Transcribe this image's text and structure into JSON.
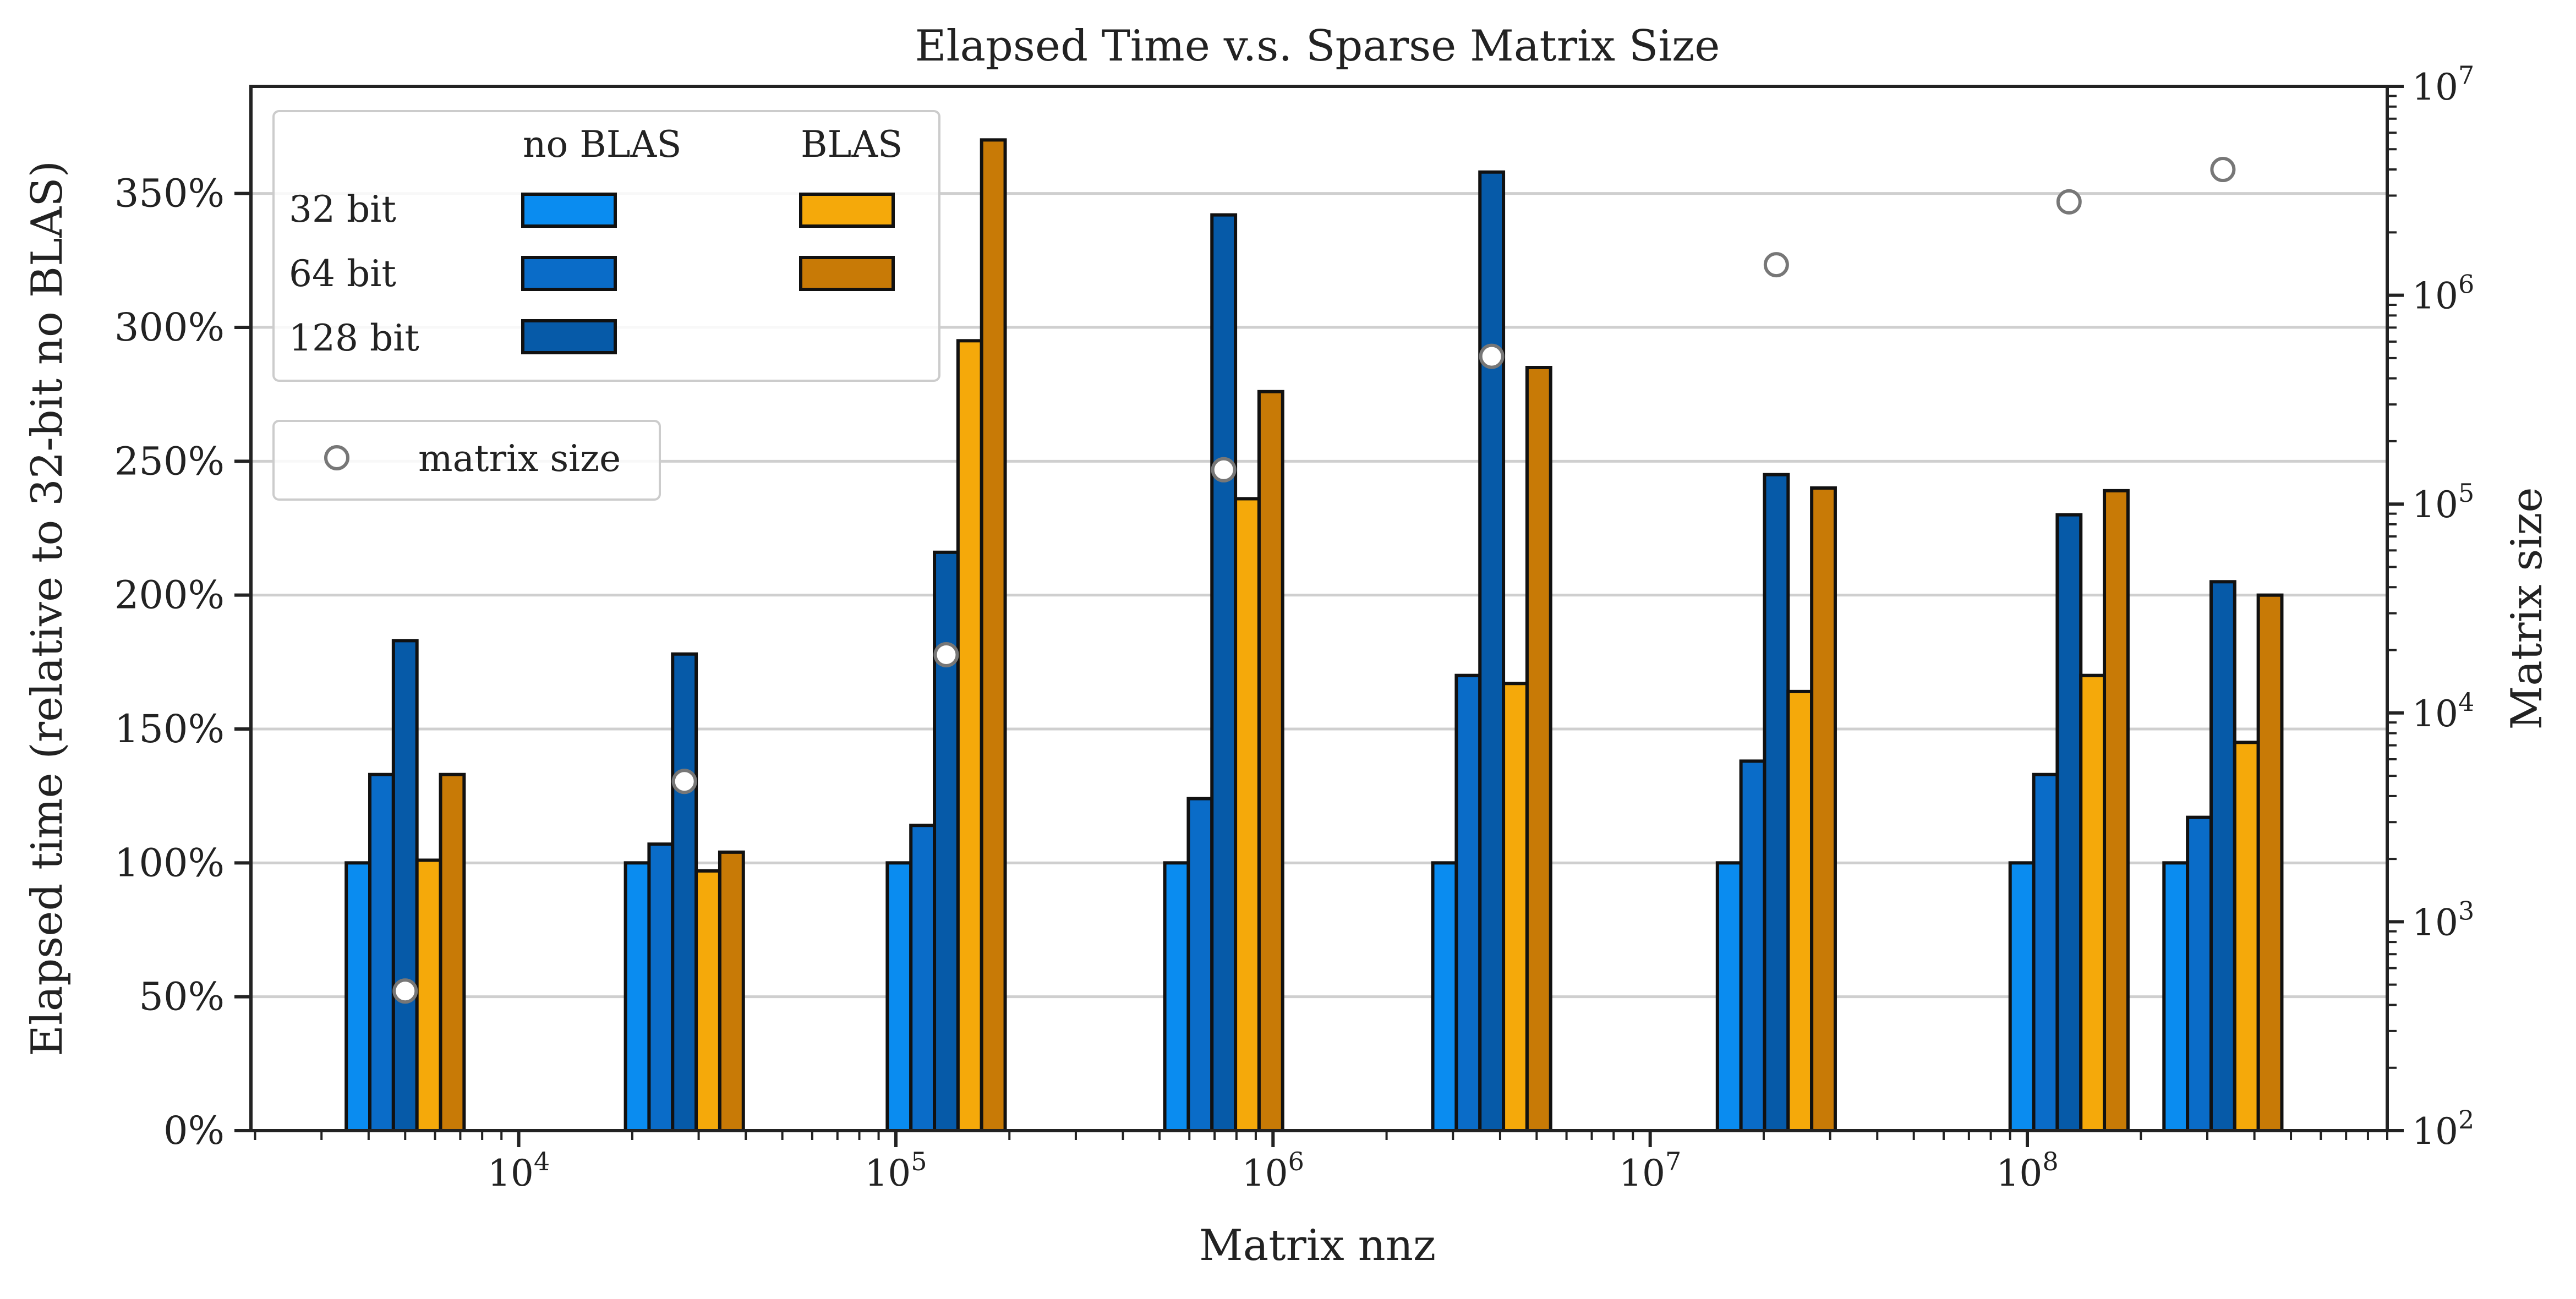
{
  "chart_data": {
    "type": "bar",
    "title": "Elapsed Time v.s. Sparse Matrix Size",
    "xlabel": "Matrix nnz",
    "ylabel": "Elapsed time (relative to 32-bit no BLAS)",
    "y2label": "Matrix size",
    "x_scale": "log",
    "xlim": [
      1950,
      900000000
    ],
    "ylim": [
      0,
      390
    ],
    "y2_scale": "log",
    "y2lim": [
      100,
      10000000
    ],
    "x_ticks": [
      {
        "exp": "4",
        "value": 10000
      },
      {
        "exp": "5",
        "value": 100000
      },
      {
        "exp": "6",
        "value": 1000000
      },
      {
        "exp": "7",
        "value": 10000000
      },
      {
        "exp": "8",
        "value": 100000000
      }
    ],
    "y_ticks": [
      "0%",
      "50%",
      "100%",
      "150%",
      "200%",
      "250%",
      "300%",
      "350%"
    ],
    "y_tick_values": [
      0,
      50,
      100,
      150,
      200,
      250,
      300,
      350
    ],
    "y2_ticks": [
      {
        "exp": "2",
        "value": 100
      },
      {
        "exp": "3",
        "value": 1000
      },
      {
        "exp": "4",
        "value": 10000
      },
      {
        "exp": "5",
        "value": 100000
      },
      {
        "exp": "6",
        "value": 1000000
      },
      {
        "exp": "7",
        "value": 10000000
      }
    ],
    "grid": "horizontal",
    "bar_log_width": 0.0625,
    "series": [
      {
        "key": "nb32",
        "color": "#0a8cf0"
      },
      {
        "key": "nb64",
        "color": "#0a6cc8"
      },
      {
        "key": "nb128",
        "color": "#065aa8"
      },
      {
        "key": "b32",
        "color": "#f5a90a"
      },
      {
        "key": "b64",
        "color": "#c87a06"
      }
    ],
    "groups": [
      {
        "nnz": 5000,
        "values": [
          100,
          133,
          183,
          101,
          133
        ],
        "matrix_size": 466
      },
      {
        "nnz": 27500,
        "values": [
          100,
          107,
          178,
          97,
          104
        ],
        "matrix_size": 4700
      },
      {
        "nnz": 136000,
        "values": [
          100,
          114,
          216,
          295,
          370
        ],
        "matrix_size": 19000
      },
      {
        "nnz": 740000,
        "values": [
          100,
          124,
          342,
          236,
          276
        ],
        "matrix_size": 146000
      },
      {
        "nnz": 3800000,
        "values": [
          100,
          170,
          358,
          167,
          285
        ],
        "matrix_size": 510000
      },
      {
        "nnz": 21600000,
        "values": [
          100,
          138,
          245,
          164,
          240
        ],
        "matrix_size": 1400000
      },
      {
        "nnz": 129000000,
        "values": [
          100,
          133,
          230,
          170,
          239
        ],
        "matrix_size": 2800000
      },
      {
        "nnz": 330000000,
        "values": [
          100,
          117,
          205,
          145,
          200
        ],
        "matrix_size": 4000000
      }
    ]
  },
  "legend": {
    "header_no_blas": "no BLAS",
    "header_blas": "BLAS",
    "row_32": "32 bit",
    "row_64": "64 bit",
    "row_128": "128 bit",
    "marker_label": "matrix size"
  }
}
